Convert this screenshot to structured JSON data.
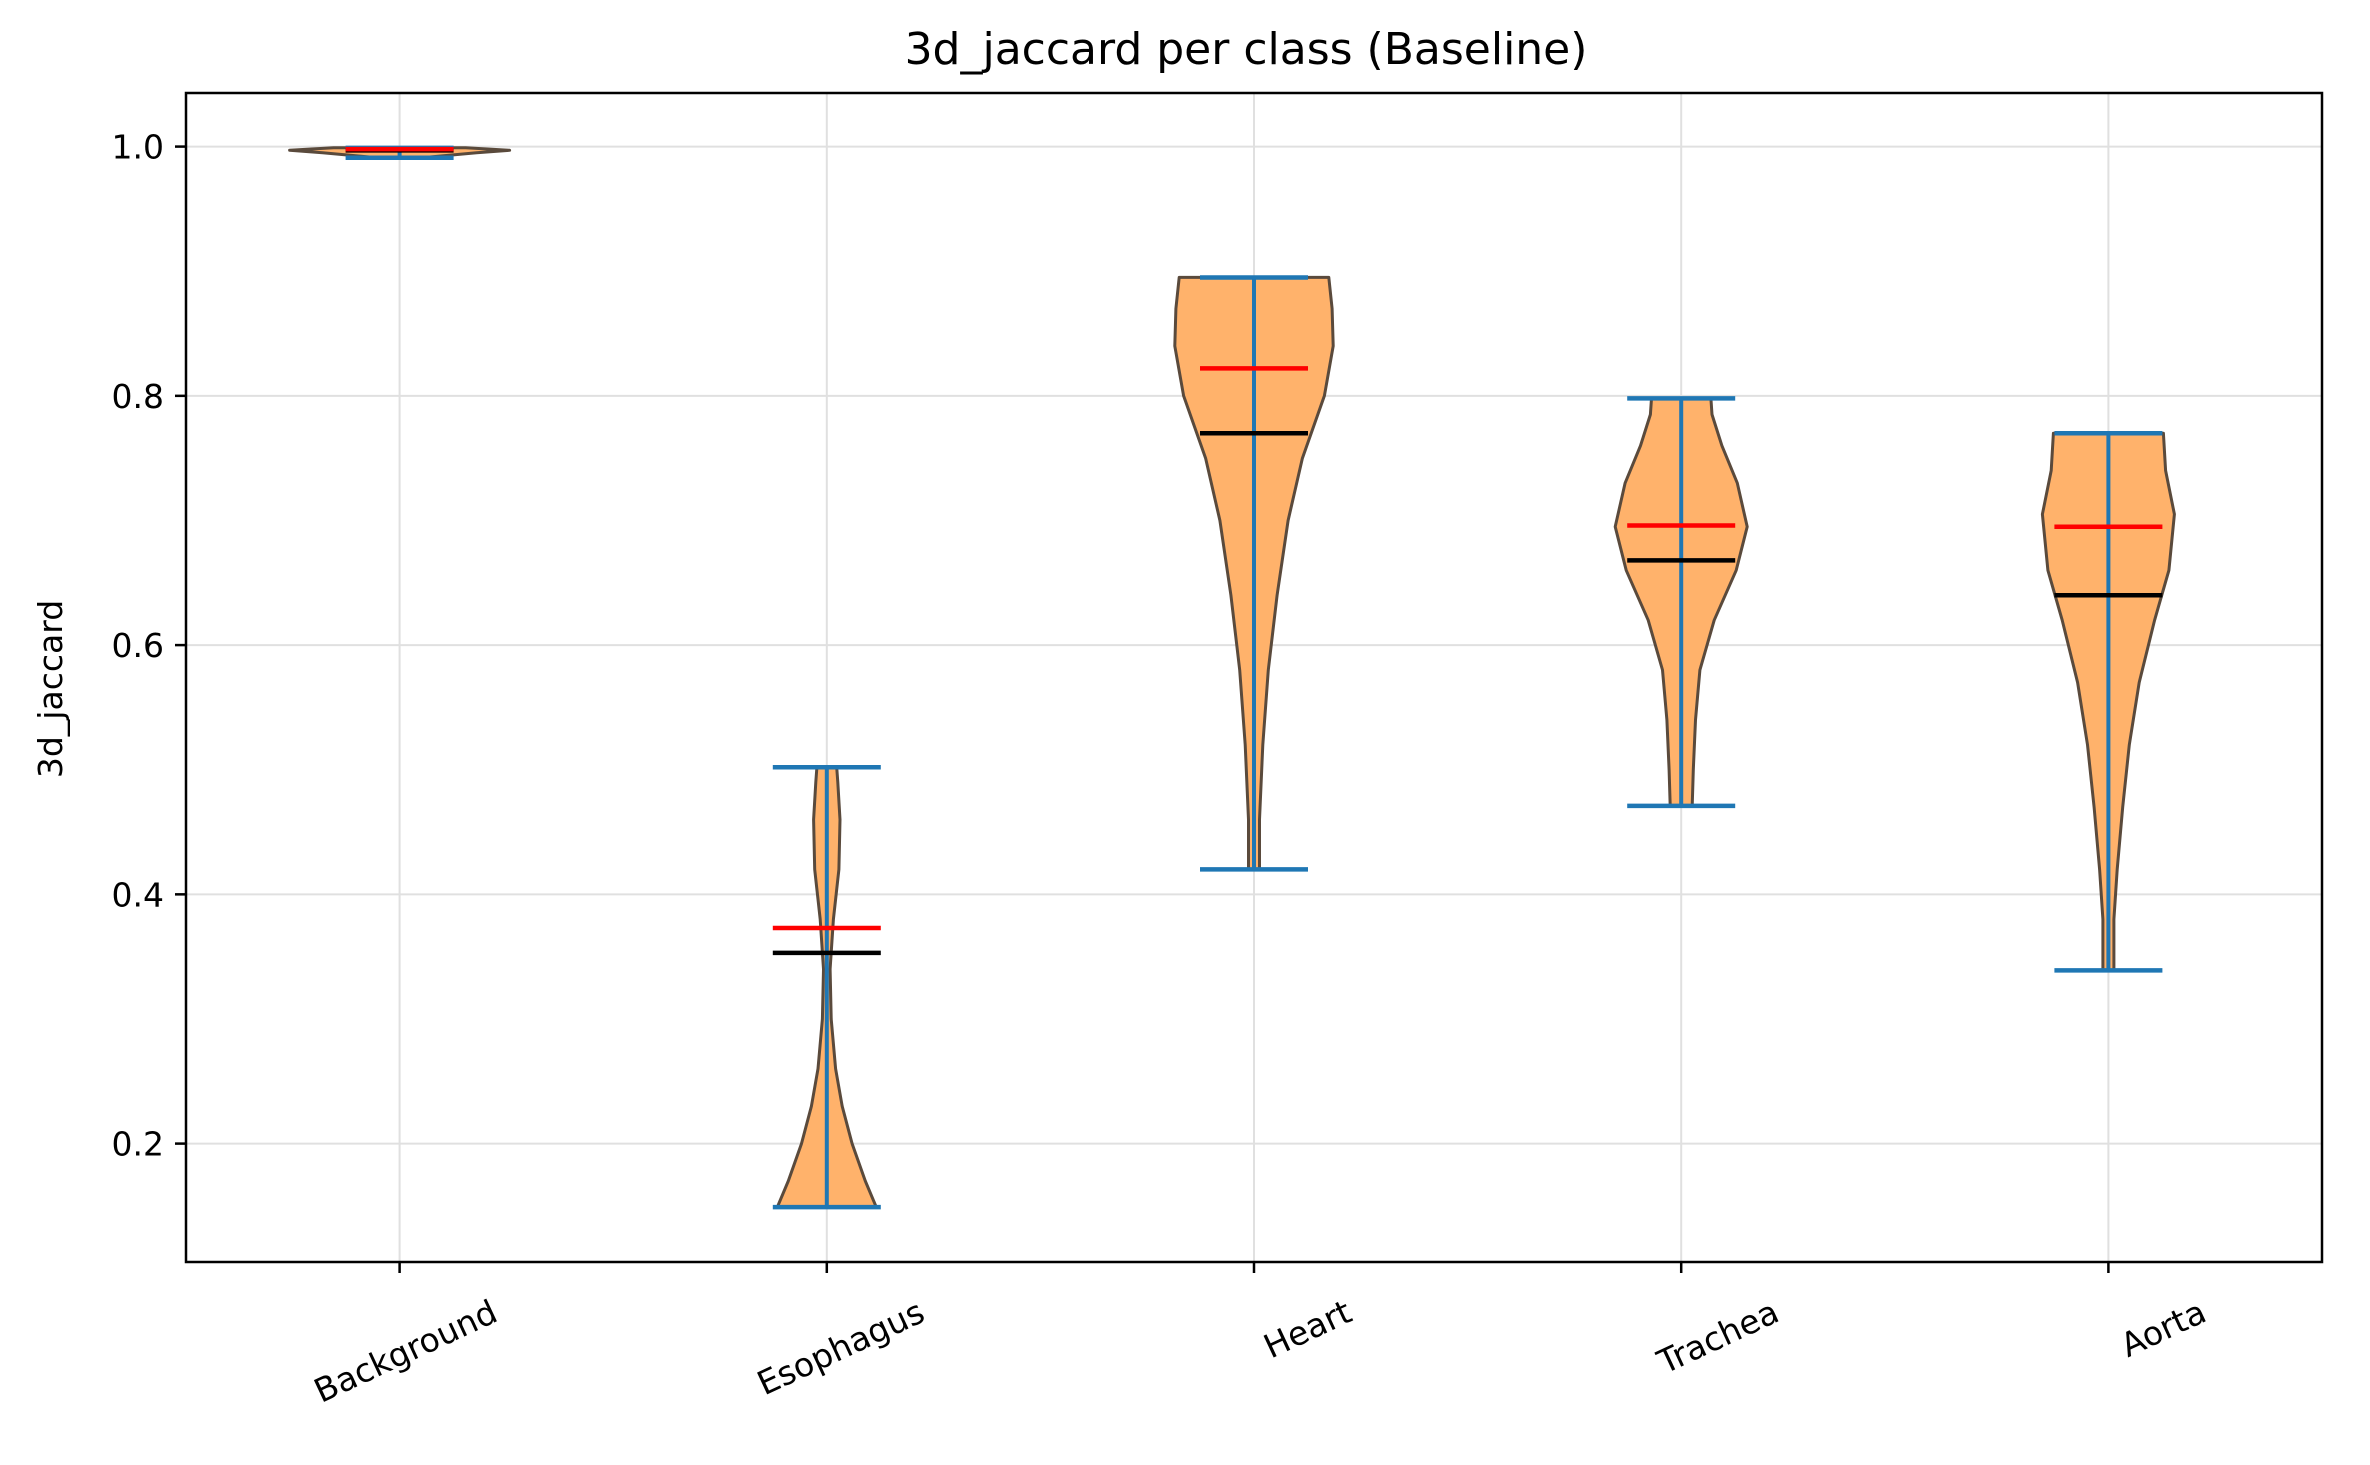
{
  "chart_data": {
    "type": "violin",
    "title": "3d_jaccard per class (Baseline)",
    "xlabel": "",
    "ylabel": "3d_jaccard",
    "ylim": [
      0.105,
      1.043
    ],
    "yticks": [
      0.2,
      0.4,
      0.6,
      0.8,
      1.0
    ],
    "ytick_labels": [
      "0.2",
      "0.4",
      "0.6",
      "0.8",
      "1.0"
    ],
    "grid": true,
    "categories": [
      "Background",
      "Esophagus",
      "Heart",
      "Trachea",
      "Aorta"
    ],
    "series": [
      {
        "category": "Background",
        "min": 0.991,
        "max": 0.999,
        "mean": 0.997,
        "median": 0.998,
        "density": [
          [
            0.991,
            0.2
          ],
          [
            0.995,
            0.7
          ],
          [
            0.997,
            1.0
          ],
          [
            0.999,
            0.6
          ]
        ]
      },
      {
        "category": "Esophagus",
        "min": 0.149,
        "max": 0.502,
        "mean": 0.353,
        "median": 0.373,
        "density": [
          [
            0.149,
            0.45
          ],
          [
            0.17,
            0.35
          ],
          [
            0.2,
            0.23
          ],
          [
            0.23,
            0.14
          ],
          [
            0.26,
            0.08
          ],
          [
            0.3,
            0.04
          ],
          [
            0.34,
            0.03
          ],
          [
            0.38,
            0.06
          ],
          [
            0.42,
            0.11
          ],
          [
            0.46,
            0.12
          ],
          [
            0.49,
            0.1
          ],
          [
            0.502,
            0.09
          ]
        ]
      },
      {
        "category": "Heart",
        "min": 0.42,
        "max": 0.895,
        "mean": 0.77,
        "median": 0.822,
        "density": [
          [
            0.42,
            0.05
          ],
          [
            0.46,
            0.05
          ],
          [
            0.52,
            0.08
          ],
          [
            0.58,
            0.13
          ],
          [
            0.64,
            0.21
          ],
          [
            0.7,
            0.31
          ],
          [
            0.75,
            0.44
          ],
          [
            0.8,
            0.64
          ],
          [
            0.84,
            0.72
          ],
          [
            0.87,
            0.71
          ],
          [
            0.895,
            0.68
          ]
        ]
      },
      {
        "category": "Trachea",
        "min": 0.471,
        "max": 0.798,
        "mean": 0.668,
        "median": 0.696,
        "density": [
          [
            0.471,
            0.1
          ],
          [
            0.5,
            0.11
          ],
          [
            0.54,
            0.13
          ],
          [
            0.58,
            0.17
          ],
          [
            0.62,
            0.3
          ],
          [
            0.66,
            0.5
          ],
          [
            0.695,
            0.6
          ],
          [
            0.73,
            0.51
          ],
          [
            0.76,
            0.37
          ],
          [
            0.785,
            0.28
          ],
          [
            0.798,
            0.27
          ]
        ]
      },
      {
        "category": "Aorta",
        "min": 0.339,
        "max": 0.77,
        "mean": 0.64,
        "median": 0.695,
        "density": [
          [
            0.339,
            0.05
          ],
          [
            0.38,
            0.05
          ],
          [
            0.42,
            0.08
          ],
          [
            0.47,
            0.13
          ],
          [
            0.52,
            0.19
          ],
          [
            0.57,
            0.28
          ],
          [
            0.62,
            0.42
          ],
          [
            0.66,
            0.55
          ],
          [
            0.705,
            0.6
          ],
          [
            0.74,
            0.52
          ],
          [
            0.77,
            0.5
          ]
        ]
      }
    ],
    "colors": {
      "body_fill": "#ffb26b",
      "body_edge": "#5a4a3c",
      "extrema": "#1f77b4",
      "mean": "#000000",
      "median": "#ff0000",
      "grid": "#e0e0e0"
    }
  }
}
